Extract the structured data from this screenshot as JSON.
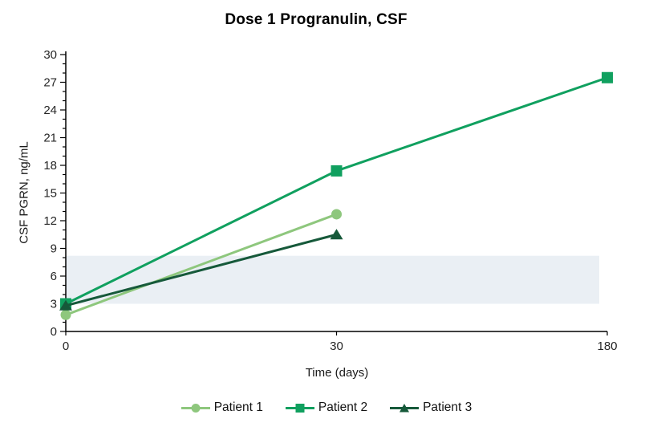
{
  "chart_data": {
    "type": "line",
    "title": "Dose 1 Progranulin, CSF",
    "xlabel": "Time (days)",
    "ylabel": "CSF PGRN, ng/mL",
    "x_categories": [
      "0",
      "30",
      "180"
    ],
    "x_axis_note": "categorical, equally spaced ticks",
    "ylim": [
      0,
      30
    ],
    "y_major_ticks": [
      0,
      3,
      6,
      9,
      12,
      15,
      18,
      21,
      24,
      27,
      30
    ],
    "y_minor_step": 1,
    "grid": "off",
    "reference_band": {
      "ymin": 3.0,
      "ymax": 8.2,
      "color": "#eaeff4"
    },
    "series": [
      {
        "name": "Patient 1",
        "marker": "circle",
        "color": "#8ec77d",
        "values": [
          1.8,
          12.7,
          null
        ]
      },
      {
        "name": "Patient 2",
        "marker": "square",
        "color": "#10a05f",
        "values": [
          3.0,
          17.4,
          27.5
        ]
      },
      {
        "name": "Patient 3",
        "marker": "triangle",
        "color": "#16593a",
        "values": [
          2.8,
          10.5,
          null
        ]
      }
    ],
    "legend_position": "bottom",
    "axis_color": "#000000",
    "tick_label_color": "#262626"
  }
}
